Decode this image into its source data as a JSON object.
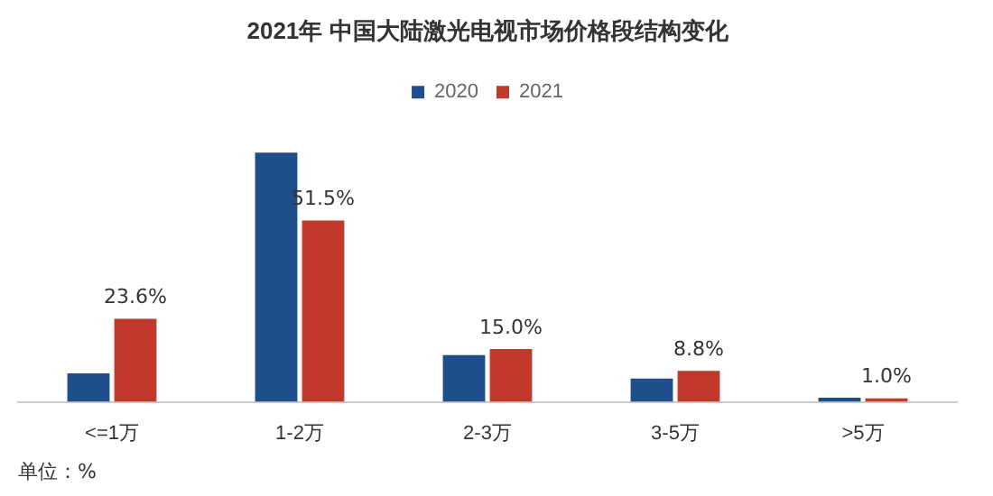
{
  "chart_data": {
    "type": "bar",
    "title": "2021年 中国大陆激光电视市场价格段结构变化",
    "categories": [
      "<=1万",
      "1-2万",
      "2-3万",
      "3-5万",
      ">5万"
    ],
    "series": [
      {
        "name": "2020",
        "color": "#1f4e8c",
        "values": [
          8.1,
          70.8,
          13.3,
          6.6,
          1.2
        ]
      },
      {
        "name": "2021",
        "color": "#c0392b",
        "values": [
          23.6,
          51.5,
          15.0,
          8.8,
          1.0
        ],
        "value_labels": [
          "23.6%",
          "51.5%",
          "15.0%",
          "8.8%",
          "1.0%"
        ]
      }
    ],
    "legend": "top",
    "grid": false,
    "tick_labels": "x",
    "annotations": [
      "单位：%"
    ]
  }
}
